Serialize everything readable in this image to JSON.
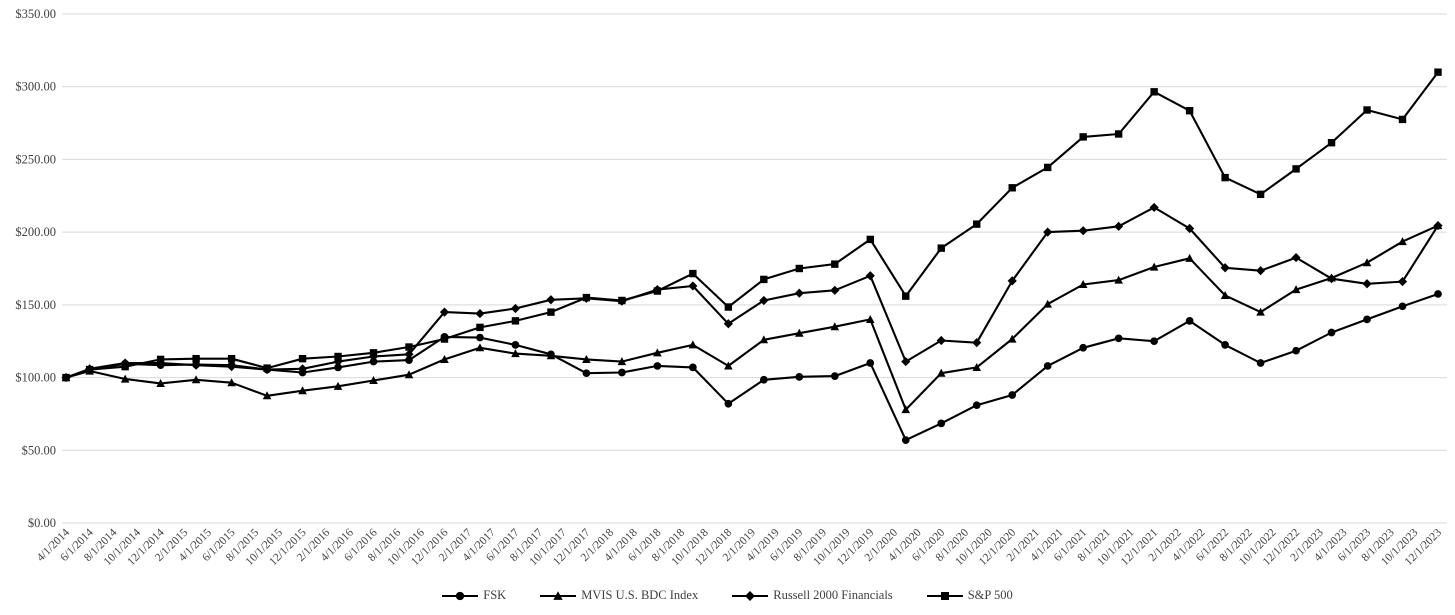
{
  "chart_data": {
    "type": "line",
    "title": "",
    "grid": true,
    "legend_position": "bottom",
    "colors": {
      "series": "#000000",
      "gridline": "#d9d9d9",
      "axis_text": "#3f3f3f",
      "background": "#ffffff"
    },
    "y_axis": {
      "min": 0,
      "max": 350,
      "step": 50,
      "tick_labels": [
        "$0.00",
        "$50.00",
        "$100.00",
        "$150.00",
        "$200.00",
        "$250.00",
        "$300.00",
        "$350.00"
      ]
    },
    "x_axis": {
      "labels": [
        "4/1/2014",
        "6/1/2014",
        "8/1/2014",
        "10/1/2014",
        "12/1/2014",
        "2/1/2015",
        "4/1/2015",
        "6/1/2015",
        "8/1/2015",
        "10/1/2015",
        "12/1/2015",
        "2/1/2016",
        "4/1/2016",
        "6/1/2016",
        "8/1/2016",
        "10/1/2016",
        "12/1/2016",
        "2/1/2017",
        "4/1/2017",
        "6/1/2017",
        "8/1/2017",
        "10/1/2017",
        "12/1/2017",
        "2/1/2018",
        "4/1/2018",
        "6/1/2018",
        "8/1/2018",
        "10/1/2018",
        "12/1/2018",
        "2/1/2019",
        "4/1/2019",
        "6/1/2019",
        "8/1/2019",
        "10/1/2019",
        "12/1/2019",
        "2/1/2020",
        "4/1/2020",
        "6/1/2020",
        "8/1/2020",
        "10/1/2020",
        "12/1/2020",
        "2/1/2021",
        "4/1/2021",
        "6/1/2021",
        "8/1/2021",
        "10/1/2021",
        "12/1/2021",
        "2/1/2022",
        "4/1/2022",
        "6/1/2022",
        "8/1/2022",
        "10/1/2022",
        "12/1/2022",
        "2/1/2023",
        "4/1/2023",
        "6/1/2023",
        "8/1/2023",
        "10/1/2023",
        "12/1/2023"
      ]
    },
    "x_month_offsets": [
      0,
      2,
      5,
      8,
      11,
      14,
      17,
      20,
      23,
      26,
      29,
      32,
      35,
      38,
      41,
      44,
      47,
      50,
      53,
      56,
      59,
      62,
      65,
      68,
      71,
      74,
      77,
      80,
      83,
      86,
      89,
      92,
      95,
      98,
      101,
      104,
      107,
      110,
      113,
      116
    ],
    "series": [
      {
        "name": "FSK",
        "marker": "circle",
        "values": [
          100,
          105.5,
          109.5,
          108.5,
          109,
          108.5,
          105.5,
          103.5,
          107,
          111,
          112,
          128,
          127.5,
          122.5,
          116,
          103,
          103.5,
          108,
          107,
          82,
          98.5,
          100.5,
          101,
          110,
          57,
          68.5,
          81,
          88,
          108,
          120.5,
          127,
          125,
          139,
          122.5,
          110,
          118.5,
          131,
          140,
          149,
          157.5
        ]
      },
      {
        "name": "MVIS U.S. BDC Index",
        "marker": "triangle",
        "values": [
          100,
          104.5,
          99,
          96,
          98.5,
          96.5,
          87.5,
          91,
          94,
          98,
          102,
          112.5,
          120.5,
          116.5,
          115,
          112.5,
          111,
          117,
          122.5,
          108,
          126,
          130.5,
          135,
          140,
          78,
          103,
          107,
          126.5,
          150.5,
          164,
          167,
          176,
          182,
          156.5,
          145,
          160.5,
          168.5,
          179,
          193.5,
          204.5
        ]
      },
      {
        "name": "Russell 2000 Financials",
        "marker": "diamond",
        "values": [
          100,
          106,
          110,
          110,
          108.5,
          107.5,
          105.5,
          106,
          111,
          114.5,
          116,
          145,
          144,
          147.5,
          153.5,
          154.5,
          152.5,
          160.5,
          163,
          137,
          153,
          158,
          160,
          170,
          111,
          125.5,
          124,
          166.5,
          200,
          201,
          204,
          217,
          202.5,
          175.5,
          173.5,
          182.5,
          168,
          164.5,
          166,
          204.5
        ]
      },
      {
        "name": "S&P 500",
        "marker": "square",
        "values": [
          100,
          105.5,
          107.5,
          112.5,
          113,
          113,
          106.5,
          113,
          114.5,
          117,
          121,
          126.5,
          134.5,
          139,
          145,
          155,
          153,
          159.5,
          171.5,
          148.5,
          167.5,
          175,
          178,
          195,
          156,
          189,
          205.5,
          230.5,
          244.5,
          265.5,
          267.5,
          296.5,
          283.5,
          237.5,
          226,
          243.5,
          261.5,
          284,
          277.5,
          310
        ]
      }
    ]
  }
}
